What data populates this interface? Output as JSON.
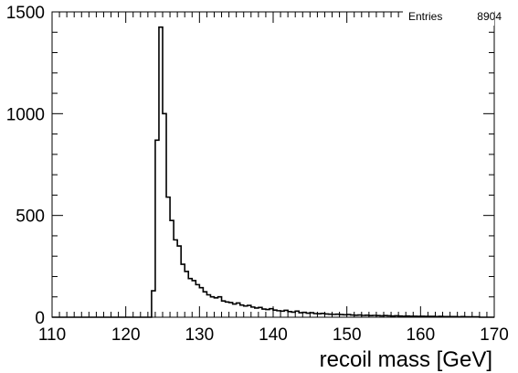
{
  "chart_data": {
    "type": "bar",
    "title": "",
    "xlabel": "recoil mass [GeV]",
    "ylabel": "",
    "xlim": [
      110,
      170
    ],
    "ylim": [
      0,
      1500
    ],
    "x_ticks": [
      110,
      120,
      130,
      140,
      150,
      160,
      170
    ],
    "y_ticks": [
      0,
      500,
      1000,
      1500
    ],
    "grid": false,
    "legend": "none",
    "stats": {
      "label": "Entries",
      "value": "8904"
    },
    "bin_width": 0.5,
    "bin_edges_start": 123.5,
    "values": [
      130,
      870,
      1425,
      1000,
      590,
      475,
      380,
      350,
      260,
      225,
      190,
      180,
      160,
      145,
      125,
      110,
      100,
      95,
      100,
      80,
      75,
      72,
      65,
      70,
      60,
      55,
      58,
      50,
      45,
      48,
      40,
      38,
      42,
      35,
      32,
      30,
      34,
      28,
      25,
      30,
      22,
      24,
      20,
      22,
      18,
      17,
      19,
      16,
      15,
      14,
      15,
      13,
      12,
      13,
      11,
      10,
      11,
      9,
      10,
      8,
      9,
      8,
      7,
      8,
      7,
      6,
      7,
      6,
      5,
      6,
      5,
      5,
      4,
      5,
      4,
      4,
      4,
      3,
      4,
      3,
      3,
      3,
      3,
      2,
      3,
      2,
      2,
      2,
      2
    ]
  }
}
